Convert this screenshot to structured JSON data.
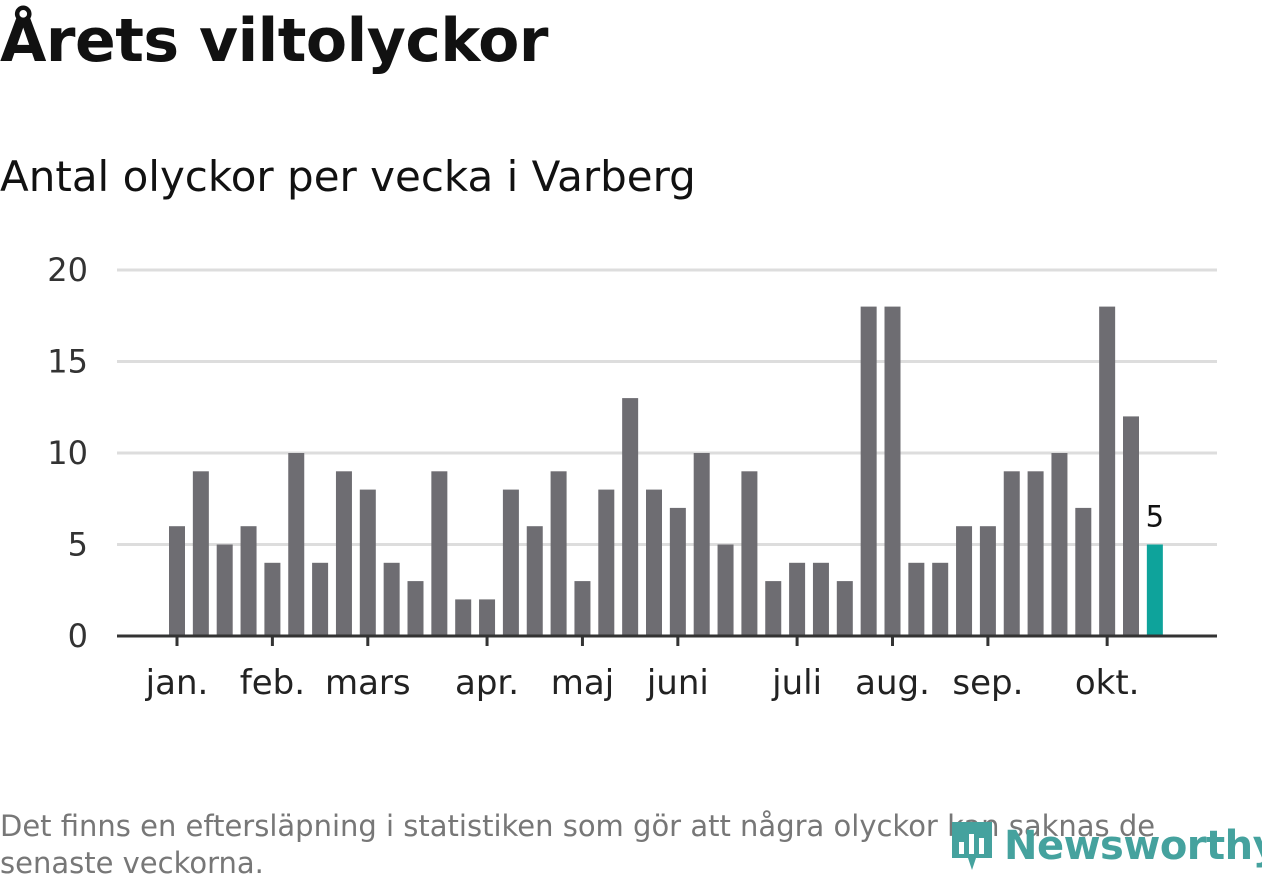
{
  "title": "Årets viltolyckor",
  "subtitle": "Antal olyckor per vecka i Varberg",
  "footnote": "Det finns en eftersläpning i statistiken som gör att några olyckor kan saknas de senaste veckorna.",
  "logo": {
    "text": "Newsworthy",
    "icon": "bar-chart-logo-icon"
  },
  "colors": {
    "bar": "#6e6d72",
    "highlight": "#0ea39b",
    "grid": "#dddddd",
    "axis": "#333333"
  },
  "chart_data": {
    "type": "bar",
    "title": "Antal olyckor per vecka i Varberg",
    "xlabel": "",
    "ylabel": "",
    "ylim": [
      0,
      20
    ],
    "yticks": [
      0,
      5,
      10,
      15,
      20
    ],
    "values": [
      6,
      9,
      5,
      6,
      4,
      10,
      4,
      9,
      8,
      4,
      3,
      9,
      2,
      2,
      8,
      6,
      9,
      3,
      8,
      13,
      8,
      7,
      10,
      5,
      9,
      3,
      4,
      4,
      3,
      18,
      18,
      4,
      4,
      6,
      6,
      9,
      9,
      10,
      7,
      18,
      12,
      5
    ],
    "month_ticks": [
      {
        "label": "jan.",
        "week_index": 0
      },
      {
        "label": "feb.",
        "week_index": 4
      },
      {
        "label": "mars",
        "week_index": 8
      },
      {
        "label": "apr.",
        "week_index": 13
      },
      {
        "label": "maj",
        "week_index": 17
      },
      {
        "label": "juni",
        "week_index": 21
      },
      {
        "label": "juli",
        "week_index": 26
      },
      {
        "label": "aug.",
        "week_index": 30
      },
      {
        "label": "sep.",
        "week_index": 34
      },
      {
        "label": "okt.",
        "week_index": 39
      }
    ],
    "highlight_index": 41,
    "highlight_label": "5",
    "grid": true
  }
}
